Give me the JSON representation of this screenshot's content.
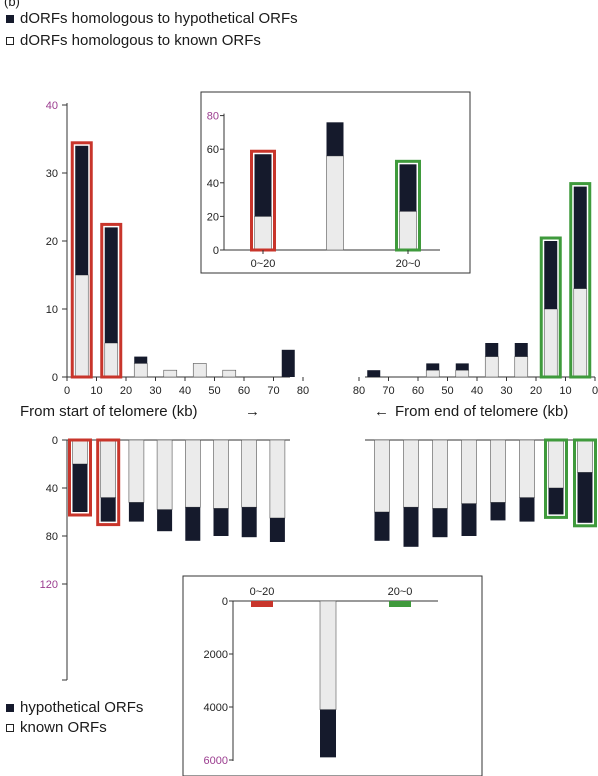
{
  "panel_label": "(b)",
  "legend_top": {
    "dark": "dORFs homologous to hypothetical ORFs",
    "light": "dORFs homologous to known ORFs"
  },
  "legend_bottom": {
    "dark": "hypothetical ORFs",
    "light": "known ORFs"
  },
  "axis_titles": {
    "left": "From start of telomere (kb)",
    "left_arrow": "→",
    "right_arrow": "←",
    "right": "From end of telomere (kb)"
  },
  "colors": {
    "hypothetical": "#151a2c",
    "known": "#ebebeb",
    "highlight_start": "#c8352b",
    "highlight_end": "#3f9a3c",
    "axis_number": "#9b3c8f"
  },
  "chart_data": [
    {
      "type": "bar",
      "stacked": true,
      "description_key": "top_main",
      "x_left_ticks": [
        "0",
        "10",
        "20",
        "30",
        "40",
        "50",
        "60",
        "70",
        "80"
      ],
      "x_right_ticks": [
        "80",
        "70",
        "60",
        "50",
        "40",
        "30",
        "20",
        "10",
        "0"
      ],
      "ylim": [
        0,
        40
      ],
      "yticks": [
        "0",
        "10",
        "20",
        "30",
        "40"
      ],
      "series_names": [
        "dORFs homologous to hypothetical ORFs",
        "dORFs homologous to known ORFs"
      ],
      "left_bars": [
        {
          "x": 5,
          "known": 15,
          "hyp": 19,
          "highlight": "start"
        },
        {
          "x": 15,
          "known": 5,
          "hyp": 17,
          "highlight": "start"
        },
        {
          "x": 25,
          "known": 2,
          "hyp": 1
        },
        {
          "x": 35,
          "known": 1,
          "hyp": 0
        },
        {
          "x": 45,
          "known": 2,
          "hyp": 0
        },
        {
          "x": 55,
          "known": 1,
          "hyp": 0
        },
        {
          "x": 75,
          "known": 0,
          "hyp": 4
        }
      ],
      "right_bars": [
        {
          "x": 75,
          "known": 0,
          "hyp": 1
        },
        {
          "x": 55,
          "known": 1,
          "hyp": 1
        },
        {
          "x": 45,
          "known": 1,
          "hyp": 1
        },
        {
          "x": 35,
          "known": 3,
          "hyp": 2
        },
        {
          "x": 25,
          "known": 3,
          "hyp": 2
        },
        {
          "x": 15,
          "known": 10,
          "hyp": 10,
          "highlight": "end"
        },
        {
          "x": 5,
          "known": 13,
          "hyp": 15,
          "highlight": "end"
        }
      ]
    },
    {
      "type": "bar",
      "stacked": true,
      "description_key": "top_inset",
      "categories": [
        "0~20",
        "",
        "20~0"
      ],
      "ylim": [
        0,
        80
      ],
      "yticks": [
        "0",
        "20",
        "40",
        "60",
        "80"
      ],
      "bars": [
        {
          "known": 20,
          "hyp": 37,
          "highlight": "start"
        },
        {
          "known": 56,
          "hyp": 20
        },
        {
          "known": 23,
          "hyp": 28,
          "highlight": "end"
        }
      ]
    },
    {
      "type": "bar",
      "stacked": true,
      "inverted": true,
      "description_key": "bottom_main",
      "ylim": [
        0,
        120
      ],
      "yticks": [
        "0",
        "40",
        "80",
        "120"
      ],
      "series_names": [
        "hypothetical ORFs",
        "known ORFs"
      ],
      "left_bars": [
        {
          "x": 5,
          "known": 20,
          "hyp": 40,
          "highlight": "start"
        },
        {
          "x": 15,
          "known": 48,
          "hyp": 20,
          "highlight": "start"
        },
        {
          "x": 25,
          "known": 52,
          "hyp": 16
        },
        {
          "x": 35,
          "known": 58,
          "hyp": 18
        },
        {
          "x": 45,
          "known": 56,
          "hyp": 28
        },
        {
          "x": 55,
          "known": 57,
          "hyp": 23
        },
        {
          "x": 65,
          "known": 56,
          "hyp": 25
        },
        {
          "x": 75,
          "known": 65,
          "hyp": 20
        }
      ],
      "right_bars": [
        {
          "x": 75,
          "known": 60,
          "hyp": 24
        },
        {
          "x": 65,
          "known": 56,
          "hyp": 33
        },
        {
          "x": 55,
          "known": 57,
          "hyp": 24
        },
        {
          "x": 45,
          "known": 53,
          "hyp": 27
        },
        {
          "x": 35,
          "known": 52,
          "hyp": 15
        },
        {
          "x": 25,
          "known": 48,
          "hyp": 20
        },
        {
          "x": 15,
          "known": 40,
          "hyp": 22,
          "highlight": "end"
        },
        {
          "x": 5,
          "known": 27,
          "hyp": 42,
          "highlight": "end"
        }
      ]
    },
    {
      "type": "bar",
      "stacked": true,
      "inverted": true,
      "description_key": "bottom_inset",
      "categories": [
        "0~20",
        "",
        "20~0"
      ],
      "ylim": [
        0,
        6000
      ],
      "yticks": [
        "0",
        "2000",
        "4000",
        "6000"
      ],
      "bars": [
        {
          "known": 0,
          "hyp": 0,
          "highlight": "start",
          "marker": true
        },
        {
          "known": 4100,
          "hyp": 1800
        },
        {
          "known": 0,
          "hyp": 0,
          "highlight": "end",
          "marker": true
        }
      ]
    }
  ]
}
